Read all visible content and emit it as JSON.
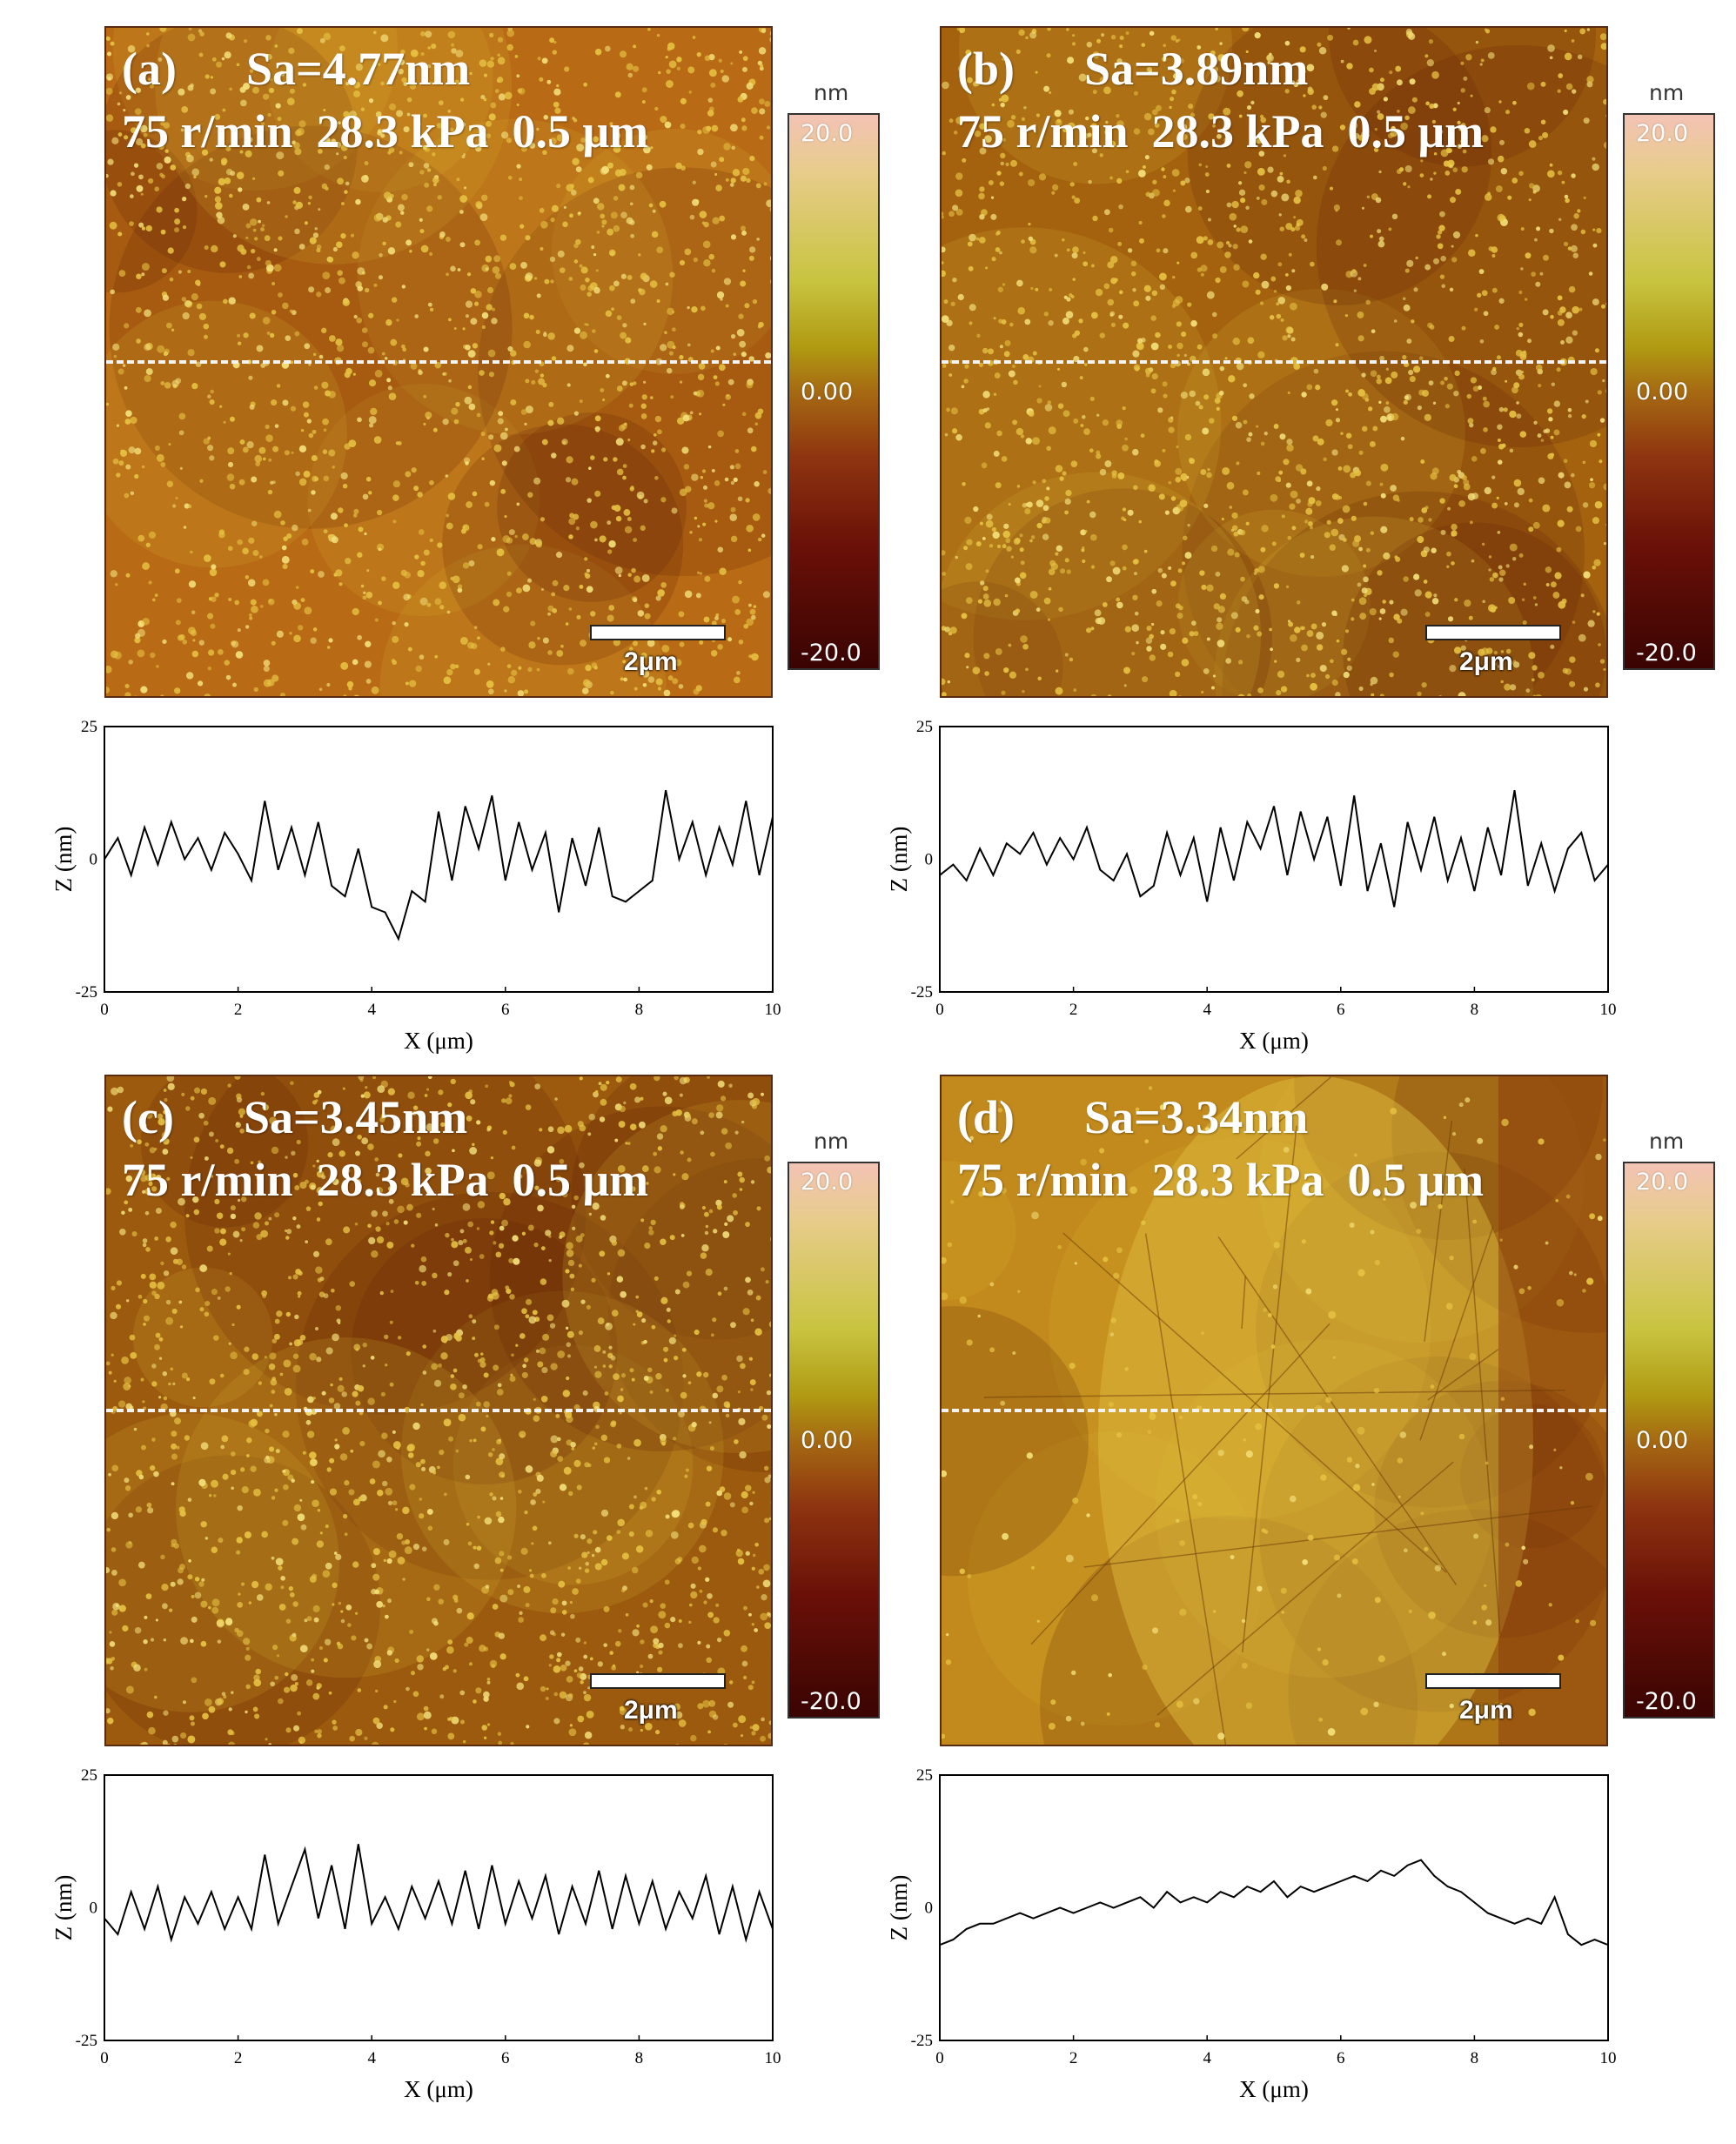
{
  "figure": {
    "colorbar": {
      "unit": "nm",
      "top": "20.0",
      "mid": "0.00",
      "bottom": "-20.0"
    },
    "scalebar": "2μm",
    "panels": [
      {
        "tag": "(a)",
        "sa": "Sa=4.77nm",
        "conditions": "75 r/min  28.3 kPa  0.5 μm"
      },
      {
        "tag": "(b)",
        "sa": "Sa=3.89nm",
        "conditions": "75 r/min  28.3 kPa  0.5 μm"
      },
      {
        "tag": "(c)",
        "sa": "Sa=3.45nm",
        "conditions": "75 r/min  28.3 kPa  0.5 μm"
      },
      {
        "tag": "(d)",
        "sa": "Sa=3.34nm",
        "conditions": "75 r/min  28.3 kPa  0.5 μm"
      }
    ],
    "image_colors": [
      "#b86a14",
      "#a4620f",
      "#9c5a0e",
      "#c28a1c"
    ]
  },
  "chart_data": [
    {
      "type": "line",
      "title": "",
      "xlabel": "X (μm)",
      "ylabel": "Z (nm)",
      "xlim": [
        0,
        10
      ],
      "ylim": [
        -25,
        25
      ],
      "xticks": [
        "0",
        "2",
        "4",
        "6",
        "8",
        "10"
      ],
      "yticks": [
        "25",
        "0",
        "-25"
      ],
      "x": [
        0,
        0.2,
        0.4,
        0.6,
        0.8,
        1.0,
        1.2,
        1.4,
        1.6,
        1.8,
        2.0,
        2.2,
        2.4,
        2.6,
        2.8,
        3.0,
        3.2,
        3.4,
        3.6,
        3.8,
        4.0,
        4.2,
        4.4,
        4.6,
        4.8,
        5.0,
        5.2,
        5.4,
        5.6,
        5.8,
        6.0,
        6.2,
        6.4,
        6.6,
        6.8,
        7.0,
        7.2,
        7.4,
        7.6,
        7.8,
        8.0,
        8.2,
        8.4,
        8.6,
        8.8,
        9.0,
        9.2,
        9.4,
        9.6,
        9.8,
        10.0
      ],
      "y": [
        0,
        4,
        -3,
        6,
        -1,
        7,
        0,
        4,
        -2,
        5,
        1,
        -4,
        11,
        -2,
        6,
        -3,
        7,
        -5,
        -7,
        2,
        -9,
        -10,
        -15,
        -6,
        -8,
        9,
        -4,
        10,
        2,
        12,
        -4,
        7,
        -2,
        5,
        -10,
        4,
        -5,
        6,
        -7,
        -8,
        -6,
        -4,
        13,
        0,
        7,
        -3,
        6,
        -1,
        11,
        -3,
        8
      ]
    },
    {
      "type": "line",
      "title": "",
      "xlabel": "X (μm)",
      "ylabel": "Z (nm)",
      "xlim": [
        0,
        10
      ],
      "ylim": [
        -25,
        25
      ],
      "xticks": [
        "0",
        "2",
        "4",
        "6",
        "8",
        "10"
      ],
      "yticks": [
        "25",
        "0",
        "-25"
      ],
      "x": [
        0,
        0.2,
        0.4,
        0.6,
        0.8,
        1.0,
        1.2,
        1.4,
        1.6,
        1.8,
        2.0,
        2.2,
        2.4,
        2.6,
        2.8,
        3.0,
        3.2,
        3.4,
        3.6,
        3.8,
        4.0,
        4.2,
        4.4,
        4.6,
        4.8,
        5.0,
        5.2,
        5.4,
        5.6,
        5.8,
        6.0,
        6.2,
        6.4,
        6.6,
        6.8,
        7.0,
        7.2,
        7.4,
        7.6,
        7.8,
        8.0,
        8.2,
        8.4,
        8.6,
        8.8,
        9.0,
        9.2,
        9.4,
        9.6,
        9.8,
        10.0
      ],
      "y": [
        -3,
        -1,
        -4,
        2,
        -3,
        3,
        1,
        5,
        -1,
        4,
        0,
        6,
        -2,
        -4,
        1,
        -7,
        -5,
        5,
        -3,
        4,
        -8,
        6,
        -4,
        7,
        2,
        10,
        -3,
        9,
        0,
        8,
        -5,
        12,
        -6,
        3,
        -9,
        7,
        -2,
        8,
        -4,
        4,
        -6,
        6,
        -3,
        13,
        -5,
        3,
        -6,
        2,
        5,
        -4,
        -1
      ]
    },
    {
      "type": "line",
      "title": "",
      "xlabel": "X (μm)",
      "ylabel": "Z (nm)",
      "xlim": [
        0,
        10
      ],
      "ylim": [
        -25,
        25
      ],
      "xticks": [
        "0",
        "2",
        "4",
        "6",
        "8",
        "10"
      ],
      "yticks": [
        "25",
        "0",
        "-25"
      ],
      "x": [
        0,
        0.2,
        0.4,
        0.6,
        0.8,
        1.0,
        1.2,
        1.4,
        1.6,
        1.8,
        2.0,
        2.2,
        2.4,
        2.6,
        2.8,
        3.0,
        3.2,
        3.4,
        3.6,
        3.8,
        4.0,
        4.2,
        4.4,
        4.6,
        4.8,
        5.0,
        5.2,
        5.4,
        5.6,
        5.8,
        6.0,
        6.2,
        6.4,
        6.6,
        6.8,
        7.0,
        7.2,
        7.4,
        7.6,
        7.8,
        8.0,
        8.2,
        8.4,
        8.6,
        8.8,
        9.0,
        9.2,
        9.4,
        9.6,
        9.8,
        10.0
      ],
      "y": [
        -2,
        -5,
        3,
        -4,
        4,
        -6,
        2,
        -3,
        3,
        -4,
        2,
        -4,
        10,
        -3,
        4,
        11,
        -2,
        8,
        -4,
        12,
        -3,
        2,
        -4,
        4,
        -2,
        5,
        -3,
        7,
        -4,
        8,
        -3,
        5,
        -2,
        6,
        -5,
        4,
        -3,
        7,
        -4,
        6,
        -3,
        5,
        -4,
        3,
        -2,
        6,
        -5,
        4,
        -6,
        3,
        -4
      ]
    },
    {
      "type": "line",
      "title": "",
      "xlabel": "X (μm)",
      "ylabel": "Z (nm)",
      "xlim": [
        0,
        10
      ],
      "ylim": [
        -25,
        25
      ],
      "xticks": [
        "0",
        "2",
        "4",
        "6",
        "8",
        "10"
      ],
      "yticks": [
        "25",
        "0",
        "-25"
      ],
      "x": [
        0,
        0.2,
        0.4,
        0.6,
        0.8,
        1.0,
        1.2,
        1.4,
        1.6,
        1.8,
        2.0,
        2.2,
        2.4,
        2.6,
        2.8,
        3.0,
        3.2,
        3.4,
        3.6,
        3.8,
        4.0,
        4.2,
        4.4,
        4.6,
        4.8,
        5.0,
        5.2,
        5.4,
        5.6,
        5.8,
        6.0,
        6.2,
        6.4,
        6.6,
        6.8,
        7.0,
        7.2,
        7.4,
        7.6,
        7.8,
        8.0,
        8.2,
        8.4,
        8.6,
        8.8,
        9.0,
        9.2,
        9.4,
        9.6,
        9.8,
        10.0
      ],
      "y": [
        -7,
        -6,
        -4,
        -3,
        -3,
        -2,
        -1,
        -2,
        -1,
        0,
        -1,
        0,
        1,
        0,
        1,
        2,
        0,
        3,
        1,
        2,
        1,
        3,
        2,
        4,
        3,
        5,
        2,
        4,
        3,
        4,
        5,
        6,
        5,
        7,
        6,
        8,
        9,
        6,
        4,
        3,
        1,
        -1,
        -2,
        -3,
        -2,
        -3,
        2,
        -5,
        -7,
        -6,
        -7
      ]
    }
  ]
}
